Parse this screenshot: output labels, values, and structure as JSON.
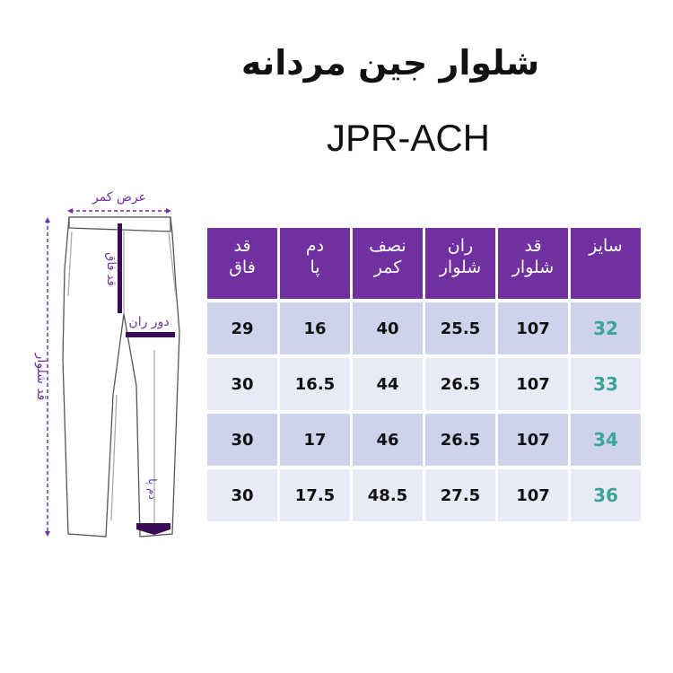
{
  "title": "شلوار جین مردانه",
  "model": "JPR-ACH",
  "diagram": {
    "waist_width": "عرض کمر",
    "rise": "قد فاق",
    "thigh": "دور ران",
    "length": "قد شلوار",
    "hem": "دم پا"
  },
  "colors": {
    "header": "#7030a0",
    "row_dark": "#cdd3ea",
    "row_light": "#e8eaf5",
    "size_text": "#3aa39a",
    "measure": "#7030a0"
  },
  "table": {
    "headers": [
      [
        "سایز",
        ""
      ],
      [
        "قد",
        "شلوار"
      ],
      [
        "ران",
        "شلوار"
      ],
      [
        "نصف",
        "کمر"
      ],
      [
        "دم",
        "پا"
      ],
      [
        "قد",
        "فاق"
      ]
    ],
    "rows": [
      [
        "32",
        "107",
        "25.5",
        "40",
        "16",
        "29"
      ],
      [
        "33",
        "107",
        "26.5",
        "44",
        "16.5",
        "30"
      ],
      [
        "34",
        "107",
        "26.5",
        "46",
        "17",
        "30"
      ],
      [
        "36",
        "107",
        "27.5",
        "48.5",
        "17.5",
        "30"
      ]
    ]
  }
}
